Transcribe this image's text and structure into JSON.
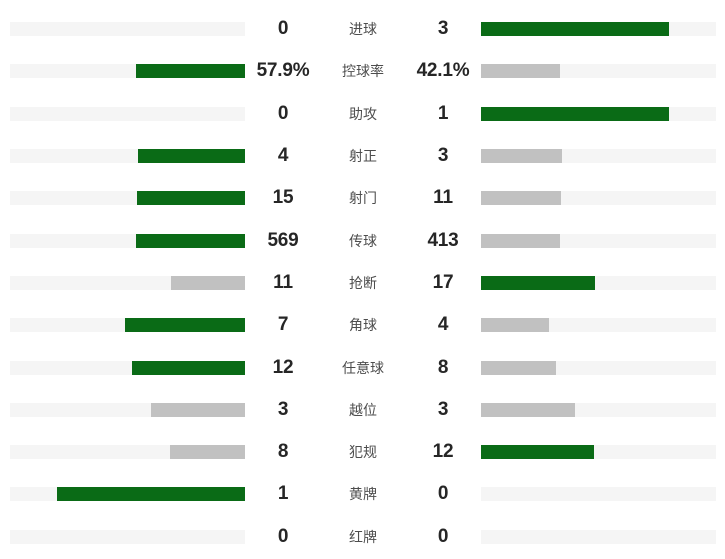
{
  "palette": {
    "winner_bar": "#0a6b16",
    "loser_bar": "#c1c1c1",
    "track": "#f5f5f5",
    "value_text": "#262626",
    "label_text": "#4d4d4d",
    "background": "#ffffff"
  },
  "chart_data": {
    "type": "bar",
    "subtype": "paired-horizontal-comparison",
    "orientation": "horizontal",
    "bar_rule": "bar width = value / (left + right) * 80% of track; left bars grow right-to-left, right bars grow left-to-right; higher value is green, lower or tied value is gray",
    "rows": [
      {
        "label": "进球",
        "left": {
          "value": 0,
          "display": "0"
        },
        "right": {
          "value": 3,
          "display": "3"
        }
      },
      {
        "label": "控球率",
        "left": {
          "value": 57.9,
          "display": "57.9%"
        },
        "right": {
          "value": 42.1,
          "display": "42.1%"
        }
      },
      {
        "label": "助攻",
        "left": {
          "value": 0,
          "display": "0"
        },
        "right": {
          "value": 1,
          "display": "1"
        }
      },
      {
        "label": "射正",
        "left": {
          "value": 4,
          "display": "4"
        },
        "right": {
          "value": 3,
          "display": "3"
        }
      },
      {
        "label": "射门",
        "left": {
          "value": 15,
          "display": "15"
        },
        "right": {
          "value": 11,
          "display": "11"
        }
      },
      {
        "label": "传球",
        "left": {
          "value": 569,
          "display": "569"
        },
        "right": {
          "value": 413,
          "display": "413"
        }
      },
      {
        "label": "抢断",
        "left": {
          "value": 11,
          "display": "11"
        },
        "right": {
          "value": 17,
          "display": "17"
        }
      },
      {
        "label": "角球",
        "left": {
          "value": 7,
          "display": "7"
        },
        "right": {
          "value": 4,
          "display": "4"
        }
      },
      {
        "label": "任意球",
        "left": {
          "value": 12,
          "display": "12"
        },
        "right": {
          "value": 8,
          "display": "8"
        }
      },
      {
        "label": "越位",
        "left": {
          "value": 3,
          "display": "3"
        },
        "right": {
          "value": 3,
          "display": "3"
        }
      },
      {
        "label": "犯规",
        "left": {
          "value": 8,
          "display": "8"
        },
        "right": {
          "value": 12,
          "display": "12"
        }
      },
      {
        "label": "黄牌",
        "left": {
          "value": 1,
          "display": "1"
        },
        "right": {
          "value": 0,
          "display": "0"
        }
      },
      {
        "label": "红牌",
        "left": {
          "value": 0,
          "display": "0"
        },
        "right": {
          "value": 0,
          "display": "0"
        }
      }
    ]
  }
}
